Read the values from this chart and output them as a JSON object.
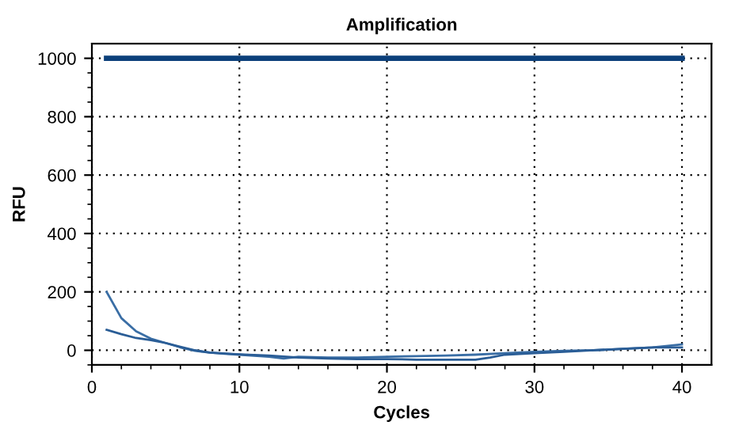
{
  "chart_data": {
    "type": "line",
    "title": "Amplification",
    "xlabel": "Cycles",
    "ylabel": "RFU",
    "xlim": [
      0,
      42
    ],
    "ylim": [
      -50,
      1050
    ],
    "xticks": [
      0,
      10,
      20,
      30,
      40
    ],
    "yticks": [
      0,
      200,
      400,
      600,
      800,
      1000
    ],
    "grid": true,
    "marker": "none",
    "line_style": "solid",
    "series": [
      {
        "color": "#3a6ea5",
        "x": [
          1,
          2,
          3,
          4,
          5,
          6,
          7,
          8,
          9,
          10,
          12,
          13,
          14,
          16,
          18,
          20,
          22,
          24,
          26,
          28,
          30,
          32,
          34,
          36,
          38,
          40
        ],
        "values": [
          200,
          110,
          65,
          40,
          25,
          10,
          -2,
          -8,
          -12,
          -15,
          -22,
          -28,
          -22,
          -25,
          -25,
          -22,
          -20,
          -18,
          -15,
          -10,
          -5,
          -2,
          0,
          5,
          10,
          20
        ]
      },
      {
        "color": "#2a5d96",
        "x": [
          1,
          2,
          3,
          4,
          5,
          6,
          7,
          8,
          10,
          12,
          14,
          16,
          18,
          20,
          22,
          24,
          26,
          27,
          28,
          30,
          32,
          34,
          36,
          38,
          40
        ],
        "values": [
          70,
          55,
          42,
          35,
          25,
          12,
          0,
          -8,
          -14,
          -18,
          -25,
          -28,
          -30,
          -30,
          -32,
          -32,
          -32,
          -25,
          -15,
          -10,
          -5,
          0,
          5,
          10,
          10
        ]
      },
      {
        "color": "#0b3f7a",
        "x": [
          1,
          40
        ],
        "values": [
          1000,
          1000
        ]
      }
    ]
  }
}
